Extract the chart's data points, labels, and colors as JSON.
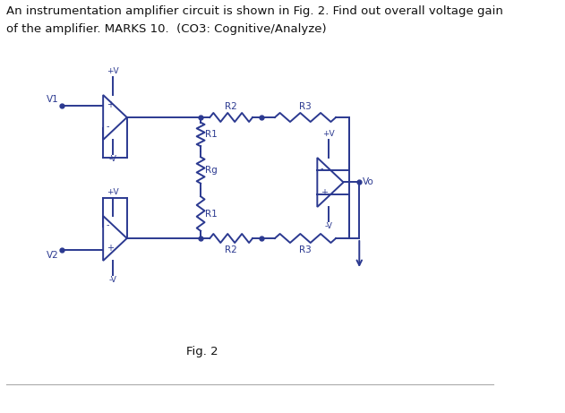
{
  "title_line1": "An instrumentation amplifier circuit is shown in Fig. 2. Find out overall voltage gain",
  "title_line2": "of the amplifier. MARKS 10.  (CO3: Cognitive/Analyze)",
  "fig_label": "Fig. 2",
  "color": "#2b3990",
  "bg_color": "#ffffff",
  "title_fontsize": 9.5,
  "label_fontsize": 7.5
}
